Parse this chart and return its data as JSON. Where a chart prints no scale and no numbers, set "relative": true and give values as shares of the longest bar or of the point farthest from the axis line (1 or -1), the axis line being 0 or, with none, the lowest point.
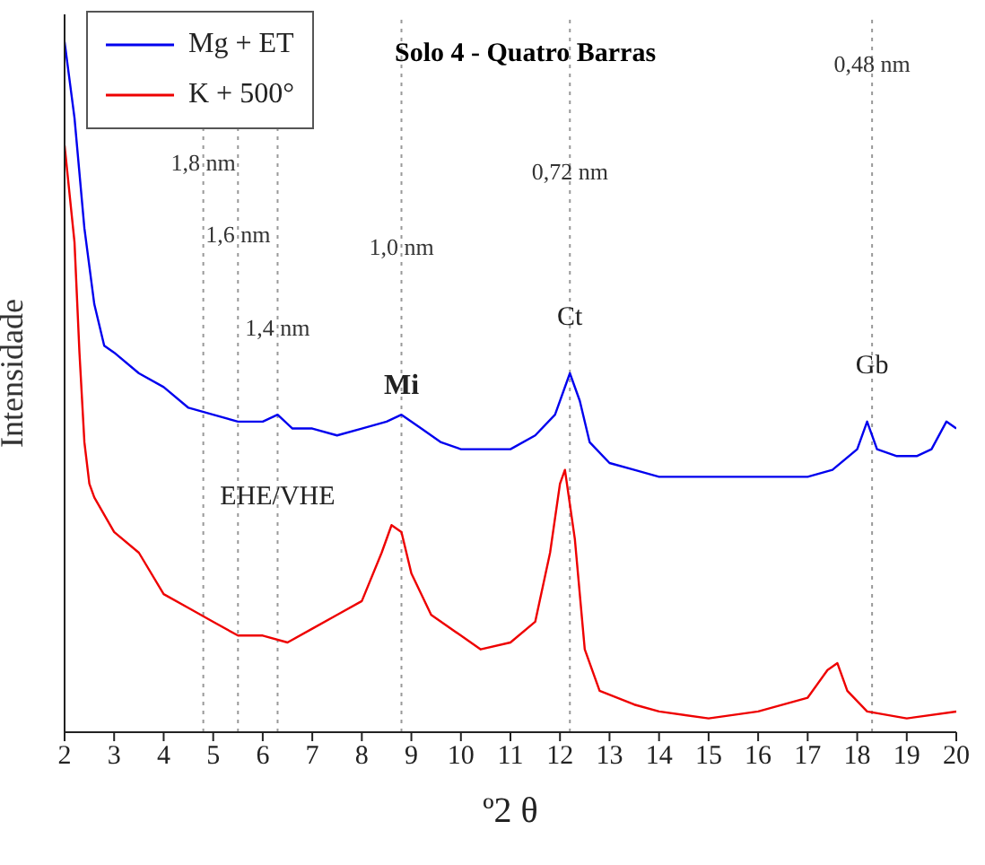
{
  "chart_data": {
    "type": "line",
    "title": "Solo 4 - Quatro Barras",
    "xlabel": "º2 θ",
    "ylabel": "Intensidade",
    "relative": true,
    "xlim": [
      2,
      20
    ],
    "xticks": [
      2,
      3,
      4,
      5,
      6,
      7,
      8,
      9,
      10,
      11,
      12,
      13,
      14,
      15,
      16,
      17,
      18,
      19,
      20
    ],
    "grid": false,
    "legend": "top left",
    "marker": "none",
    "line_style": "solid",
    "series": [
      {
        "name": "Mg + ET",
        "color": "#0000ee",
        "x": [
          2.0,
          2.2,
          2.4,
          2.6,
          2.8,
          3.0,
          3.5,
          4,
          4.5,
          5,
          5.5,
          6,
          6.3,
          6.6,
          7,
          7.5,
          8,
          8.5,
          8.8,
          9.2,
          9.6,
          10,
          10.5,
          11,
          11.5,
          11.9,
          12.2,
          12.4,
          12.6,
          13,
          13.5,
          14,
          15,
          16,
          17,
          17.5,
          18,
          18.2,
          18.4,
          18.8,
          19.2,
          19.5,
          19.8,
          20
        ],
        "values": [
          1.0,
          0.89,
          0.73,
          0.62,
          0.56,
          0.55,
          0.52,
          0.5,
          0.47,
          0.46,
          0.45,
          0.45,
          0.46,
          0.44,
          0.44,
          0.43,
          0.44,
          0.45,
          0.46,
          0.44,
          0.42,
          0.41,
          0.41,
          0.41,
          0.43,
          0.46,
          0.52,
          0.48,
          0.42,
          0.39,
          0.38,
          0.37,
          0.37,
          0.37,
          0.37,
          0.38,
          0.41,
          0.45,
          0.41,
          0.4,
          0.4,
          0.41,
          0.45,
          0.44
        ]
      },
      {
        "name": "K + 500°",
        "color": "#ee0000",
        "x": [
          2.0,
          2.2,
          2.3,
          2.4,
          2.5,
          2.6,
          3,
          3.5,
          4,
          4.5,
          5,
          5.5,
          6,
          6.5,
          7,
          7.5,
          8,
          8.4,
          8.6,
          8.8,
          9,
          9.4,
          10,
          10.4,
          11,
          11.5,
          11.8,
          12.0,
          12.1,
          12.3,
          12.5,
          12.8,
          13.5,
          14,
          15,
          16,
          17,
          17.4,
          17.6,
          17.8,
          18.2,
          19,
          20
        ],
        "values": [
          0.85,
          0.71,
          0.55,
          0.42,
          0.36,
          0.34,
          0.29,
          0.26,
          0.2,
          0.18,
          0.16,
          0.14,
          0.14,
          0.13,
          0.15,
          0.17,
          0.19,
          0.26,
          0.3,
          0.29,
          0.23,
          0.17,
          0.14,
          0.12,
          0.13,
          0.16,
          0.26,
          0.36,
          0.38,
          0.28,
          0.12,
          0.06,
          0.04,
          0.03,
          0.02,
          0.03,
          0.05,
          0.09,
          0.1,
          0.06,
          0.03,
          0.02,
          0.03
        ]
      }
    ],
    "ref_lines": [
      {
        "axis": "x",
        "value": 4.8,
        "label": "1,8 nm",
        "line_style": "dotted",
        "color": "#999999"
      },
      {
        "axis": "x",
        "value": 5.5,
        "label": "1,6 nm",
        "line_style": "dotted",
        "color": "#999999"
      },
      {
        "axis": "x",
        "value": 6.3,
        "label": "1,4 nm",
        "line_style": "dotted",
        "color": "#999999"
      },
      {
        "axis": "x",
        "value": 8.8,
        "label": "1,0 nm",
        "line_style": "dotted",
        "color": "#999999"
      },
      {
        "axis": "x",
        "value": 12.2,
        "label": "0,72 nm",
        "line_style": "dotted",
        "color": "#999999"
      },
      {
        "axis": "x",
        "value": 18.3,
        "label": "0,48 nm",
        "line_style": "dotted",
        "color": "#999999"
      }
    ],
    "annotations": [
      {
        "text": "Mi",
        "x": 8.8,
        "y": 0.49
      },
      {
        "text": "Ct",
        "x": 12.2,
        "y": 0.59
      },
      {
        "text": "Gb",
        "x": 18.3,
        "y": 0.52
      },
      {
        "text": "EHE/VHE",
        "x": 6.3,
        "y": 0.33
      }
    ]
  }
}
